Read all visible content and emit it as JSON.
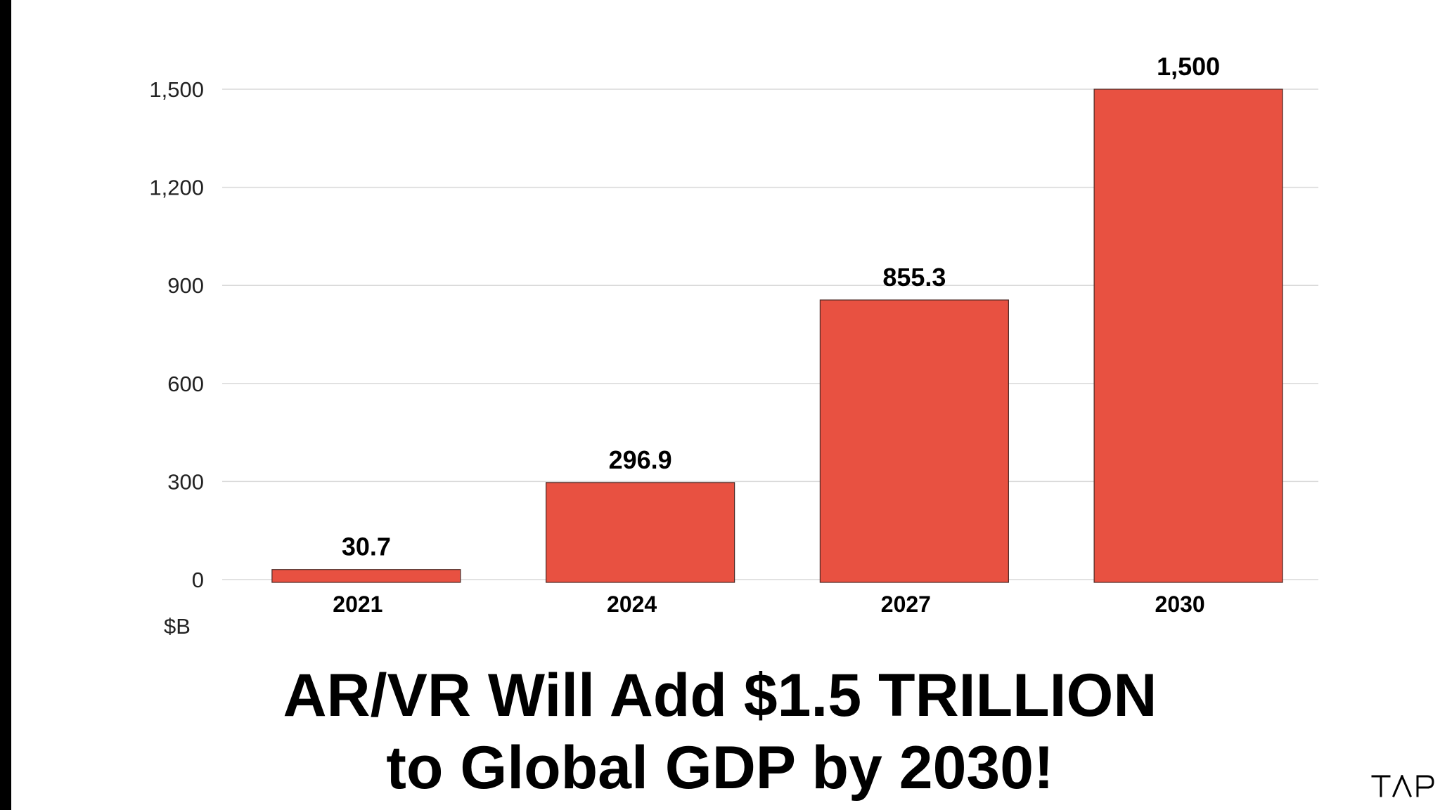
{
  "chart_data": {
    "type": "bar",
    "categories": [
      "2021",
      "2024",
      "2027",
      "2030"
    ],
    "values": [
      30.7,
      296.9,
      855.3,
      1500
    ],
    "value_labels": [
      "30.7",
      "296.9",
      "855.3",
      "1,500"
    ],
    "y_ticks": [
      0,
      300,
      600,
      900,
      1200,
      1500
    ],
    "y_tick_labels": [
      "0",
      "300",
      "600",
      "900",
      "1,200",
      "1,500"
    ],
    "ylim": [
      0,
      1500
    ],
    "unit_label": "$B",
    "grid": true,
    "bar_color": "#E85141",
    "title_line1": "AR/VR Will Add $1.5 TRILLION",
    "title_line2": "to Global GDP by 2030!"
  },
  "logo": {
    "name": "tap-logo"
  }
}
